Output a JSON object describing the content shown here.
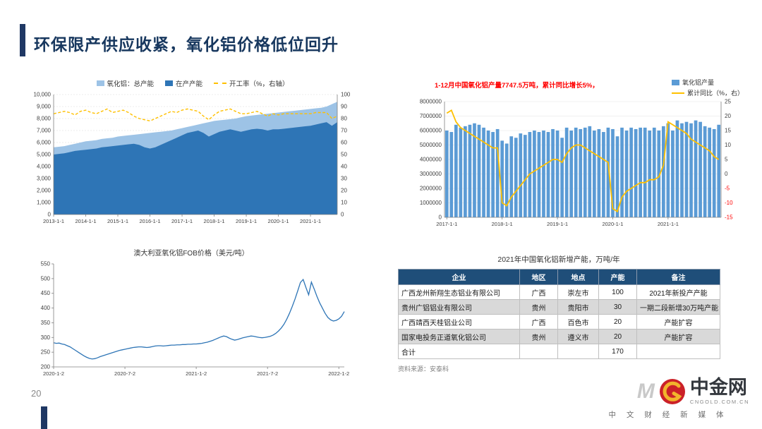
{
  "page": {
    "title": "环保限产供应收紧，氧化铝价格低位回升",
    "page_number": "20"
  },
  "footer_logo": {
    "watermark": "M",
    "brand": "中金网",
    "domain": "CNGOLD.COM.CN",
    "tagline": "中 文 财 经 新 媒 体"
  },
  "chart_data": [
    {
      "id": "capacity",
      "type": "area",
      "legend": [
        "氧化铝：总产能",
        "在产产能",
        "开工率（%，右轴）"
      ],
      "x_labels": [
        "2013-1-1",
        "2014-1-1",
        "2015-1-1",
        "2016-1-1",
        "2017-1-1",
        "2018-1-1",
        "2019-1-1",
        "2020-1-1",
        "2021-1-1"
      ],
      "x_points_per_label": 6,
      "ylim_left": [
        0,
        10000
      ],
      "ytick_step_left": 1000,
      "ylim_right": [
        0,
        100
      ],
      "ytick_step_right": 10,
      "series": [
        {
          "name": "氧化铝：总产能",
          "axis": "left",
          "color": "#9DC3E6",
          "values": [
            5600,
            5650,
            5700,
            5800,
            5900,
            6000,
            6100,
            6150,
            6200,
            6300,
            6350,
            6400,
            6500,
            6550,
            6600,
            6650,
            6700,
            6750,
            6800,
            6850,
            6900,
            6950,
            7000,
            7100,
            7200,
            7300,
            7400,
            7500,
            7600,
            7700,
            7800,
            7850,
            7900,
            7950,
            8000,
            8100,
            8200,
            8250,
            8300,
            8350,
            8400,
            8450,
            8500,
            8550,
            8600,
            8650,
            8700,
            8750,
            8800,
            8850,
            8900,
            9000,
            9200,
            9400
          ]
        },
        {
          "name": "在产产能",
          "axis": "left",
          "color": "#2E75B6",
          "values": [
            5000,
            5050,
            5100,
            5200,
            5300,
            5350,
            5400,
            5450,
            5500,
            5600,
            5650,
            5700,
            5750,
            5800,
            5850,
            5900,
            5800,
            5600,
            5500,
            5600,
            5800,
            6000,
            6200,
            6400,
            6600,
            6800,
            6900,
            7000,
            6800,
            6500,
            6700,
            6900,
            7000,
            7100,
            7000,
            6900,
            7000,
            7100,
            7150,
            7100,
            7000,
            7100,
            7100,
            7150,
            7200,
            7250,
            7300,
            7350,
            7400,
            7500,
            7600,
            7700,
            7400,
            7700
          ]
        },
        {
          "name": "开工率（%，右轴）",
          "axis": "right",
          "color": "#FFC000",
          "style": "dashed",
          "values": [
            84,
            85,
            86,
            85,
            83,
            86,
            87,
            85,
            84,
            86,
            88,
            85,
            86,
            87,
            85,
            82,
            80,
            79,
            78,
            80,
            82,
            84,
            86,
            85,
            87,
            88,
            87,
            86,
            82,
            79,
            83,
            86,
            87,
            88,
            86,
            84,
            84,
            85,
            86,
            84,
            82,
            84,
            83,
            84,
            84,
            84,
            84,
            84,
            84,
            85,
            85,
            85,
            80,
            82
          ]
        }
      ]
    },
    {
      "id": "output",
      "type": "bar",
      "title": "1-12月中国氧化铝产量7747.5万吨，累计同比增长5%，",
      "legend": [
        "氧化铝产量",
        "累计同比（%，右）"
      ],
      "x_labels": [
        "2017-1-1",
        "2018-1-1",
        "2019-1-1",
        "2020-1-1",
        "2021-1-1"
      ],
      "x_label_index": [
        0,
        12,
        24,
        36,
        48
      ],
      "ylim_left": [
        0,
        8000000
      ],
      "ytick_step_left": 1000000,
      "ylim_right": [
        -15,
        25
      ],
      "ytick_step_right": 5,
      "bar_color": "#5B9BD5",
      "line_color": "#FFC000",
      "bars": [
        6000000,
        5900000,
        6400000,
        6200000,
        6300000,
        6400000,
        6500000,
        6400000,
        6200000,
        6000000,
        5900000,
        6100000,
        5300000,
        5100000,
        5600000,
        5500000,
        5800000,
        5700000,
        5900000,
        6000000,
        5900000,
        6000000,
        5900000,
        6100000,
        6000000,
        5500000,
        6200000,
        6000000,
        6200000,
        6100000,
        6200000,
        6300000,
        6000000,
        6100000,
        5900000,
        6200000,
        6100000,
        5600000,
        6200000,
        6000000,
        6200000,
        6100000,
        6200000,
        6200000,
        6000000,
        6200000,
        6000000,
        6300000,
        6500000,
        6000000,
        6700000,
        6500000,
        6600000,
        6500000,
        6700000,
        6600000,
        6300000,
        6200000,
        6100000,
        6400000
      ],
      "line": [
        21,
        22,
        18,
        16,
        15,
        14,
        13,
        12,
        11,
        10,
        9,
        9,
        -10,
        -11,
        -8,
        -6,
        -4,
        -2,
        0,
        1,
        2,
        3,
        4,
        5,
        5,
        4,
        7,
        9,
        10,
        10,
        9,
        8,
        7,
        6,
        5,
        4,
        -12,
        -13,
        -8,
        -6,
        -5,
        -4,
        -3,
        -3,
        -2,
        -2,
        -1,
        3,
        18,
        17,
        16,
        15,
        14,
        12,
        11,
        10,
        9,
        8,
        6,
        5
      ]
    },
    {
      "id": "fob",
      "type": "line",
      "title": "澳大利亚氧化铝FOB价格（美元/吨）",
      "x_labels": [
        "2020-1-2",
        "2020-7-2",
        "2021-1-2",
        "2021-7-2",
        "2022-1-2"
      ],
      "x_tick_index": [
        0,
        26,
        52,
        78,
        104
      ],
      "ylim": [
        200,
        550
      ],
      "ytick_step": 50,
      "line_color": "#2E75B6",
      "values": [
        282,
        280,
        281,
        278,
        276,
        272,
        268,
        262,
        256,
        250,
        244,
        238,
        233,
        229,
        227,
        228,
        231,
        235,
        238,
        241,
        244,
        247,
        250,
        253,
        256,
        258,
        260,
        262,
        264,
        266,
        267,
        268,
        268,
        267,
        266,
        267,
        269,
        271,
        272,
        272,
        271,
        272,
        273,
        274,
        274,
        275,
        275,
        276,
        276,
        277,
        277,
        278,
        278,
        279,
        280,
        282,
        284,
        287,
        290,
        294,
        298,
        302,
        305,
        303,
        298,
        294,
        291,
        293,
        296,
        299,
        301,
        303,
        305,
        304,
        302,
        300,
        299,
        300,
        302,
        304,
        308,
        314,
        322,
        332,
        345,
        362,
        382,
        405,
        430,
        458,
        487,
        497,
        470,
        445,
        488,
        465,
        440,
        418,
        400,
        382,
        368,
        360,
        356,
        358,
        363,
        372,
        388
      ]
    },
    {
      "id": "new-capacity-table",
      "type": "table",
      "title": "2021年中国氧化铝新增产能，万吨/年",
      "columns": [
        "企业",
        "地区",
        "地点",
        "产能",
        "备注"
      ],
      "rows": [
        [
          "广西龙州新翔生态铝业有限公司",
          "广西",
          "崇左市",
          "100",
          "2021年新投产产能"
        ],
        [
          "贵州广铝铝业有限公司",
          "贵州",
          "贵阳市",
          "30",
          "一期二段新增30万吨产能"
        ],
        [
          "广西靖西天桂铝业公司",
          "广西",
          "百色市",
          "20",
          "产能扩容"
        ],
        [
          "国家电投务正道氧化铝公司",
          "贵州",
          "遵义市",
          "20",
          "产能扩容"
        ],
        [
          "合计",
          "",
          "",
          "170",
          ""
        ]
      ],
      "source": "资料来源：安泰科",
      "header_bg": "#1F4E79",
      "alt_row_bg": "#D9D9D9"
    }
  ]
}
